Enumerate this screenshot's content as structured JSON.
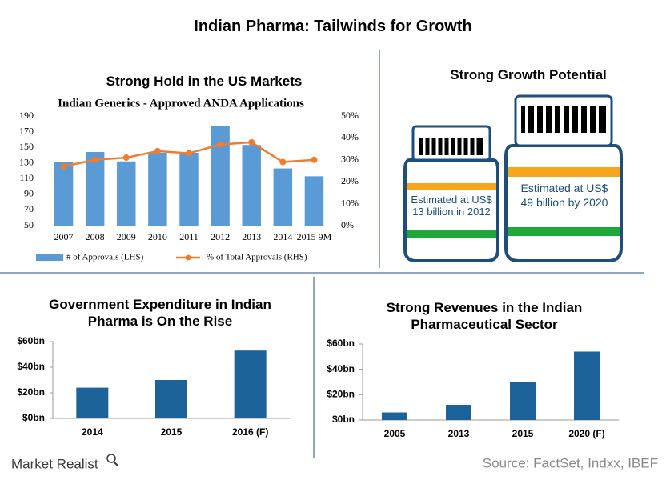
{
  "title": "Indian Pharma:  Tailwinds for Growth",
  "growth_potential": {
    "title": "Strong Growth Potential",
    "bottles": [
      {
        "text": "Estimated at US$ 13 billion in 2012"
      },
      {
        "text": "Estimated at US$ 49 billion by 2020"
      }
    ]
  },
  "chart_data": [
    {
      "type": "combo",
      "title": "Strong Hold in the US Markets",
      "subtitle": "Indian Generics - Approved ANDA Applications",
      "categories": [
        "2007",
        "2008",
        "2009",
        "2010",
        "2011",
        "2012",
        "2013",
        "2014",
        "2015 9M"
      ],
      "series": [
        {
          "name": "# of Approvals (LHS)",
          "type": "bar",
          "color": "#5b9bd5",
          "values": [
            131,
            144,
            132,
            143,
            143,
            177,
            153,
            123,
            113
          ]
        },
        {
          "name": "% of Total Approvals (RHS)",
          "type": "line",
          "axis": "y2",
          "color": "#ed7d31",
          "values": [
            27,
            30,
            31,
            34,
            33,
            37,
            38,
            29,
            30
          ]
        }
      ],
      "ylim": [
        50,
        190
      ],
      "yticks": [
        50,
        70,
        90,
        110,
        130,
        150,
        170,
        190
      ],
      "y2lim": [
        0,
        50
      ],
      "y2ticks": [
        {
          "value": 0,
          "label": "0%"
        },
        {
          "value": 10,
          "label": "10%"
        },
        {
          "value": 20,
          "label": "20%"
        },
        {
          "value": 30,
          "label": "30%"
        },
        {
          "value": 40,
          "label": "40%"
        },
        {
          "value": 50,
          "label": "50%"
        }
      ],
      "grid": false,
      "legend": "bottom"
    },
    {
      "type": "bar",
      "title": "Government Expenditure in Indian Pharma is On the Rise",
      "categories": [
        "2014",
        "2015",
        "2016 (F)"
      ],
      "values": [
        24,
        30,
        53
      ],
      "color": "#1c6399",
      "ylim": [
        0,
        60
      ],
      "yticks": [
        {
          "value": 0,
          "label": "$0bn"
        },
        {
          "value": 20,
          "label": "$20bn"
        },
        {
          "value": 40,
          "label": "$40bn"
        },
        {
          "value": 60,
          "label": "$60bn"
        }
      ],
      "grid": false
    },
    {
      "type": "bar",
      "title": "Strong Revenues in the Indian Pharmaceutical Sector",
      "categories": [
        "2005",
        "2013",
        "2015",
        "2020 (F)"
      ],
      "values": [
        6,
        12,
        30,
        54
      ],
      "color": "#1c6399",
      "ylim": [
        0,
        60
      ],
      "yticks": [
        {
          "value": 0,
          "label": "$0bn"
        },
        {
          "value": 20,
          "label": "$20bn"
        },
        {
          "value": 40,
          "label": "$40bn"
        },
        {
          "value": 60,
          "label": "$60bn"
        }
      ],
      "grid": false
    }
  ],
  "brand": "Market Realist",
  "source": "Source: FactSet, Indxx, IBEF"
}
